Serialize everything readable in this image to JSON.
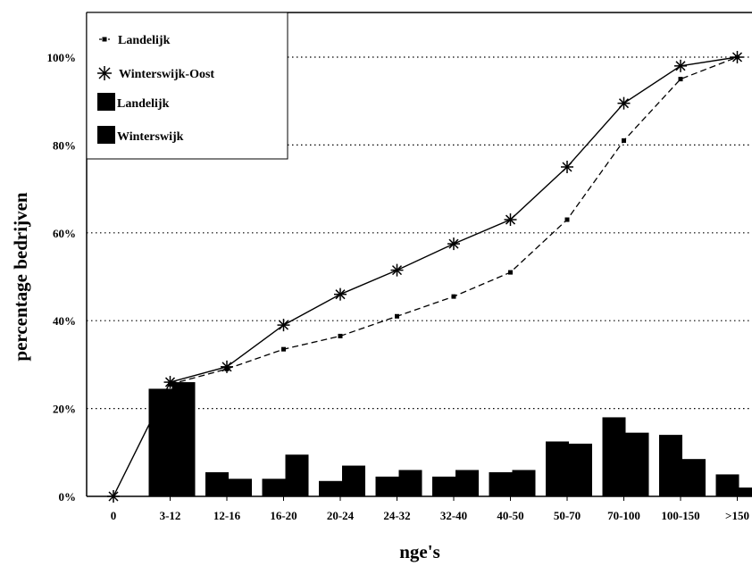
{
  "chart_data": {
    "type": "bar",
    "xlabel": "nge's",
    "ylabel": "percentage bedrijven",
    "ylim": [
      0,
      100
    ],
    "yticks": [
      "0%",
      "20%",
      "40%",
      "60%",
      "80%",
      "100%"
    ],
    "grid": "horizontal dotted",
    "legend_position": "top-left",
    "categories": [
      "0",
      "3-12",
      "12-16",
      "16-20",
      "20-24",
      "24-32",
      "32-40",
      "40-50",
      "50-70",
      "70-100",
      "100-150",
      ">150"
    ],
    "series": [
      {
        "name": "Landelijk",
        "type": "line",
        "style": "dashed",
        "marker": "square",
        "color": "#000000",
        "values": [
          null,
          25.5,
          29,
          33.5,
          36.5,
          41,
          45.5,
          51,
          63,
          81,
          95,
          100
        ]
      },
      {
        "name": "Winterswijk-Oost",
        "type": "line",
        "style": "solid",
        "marker": "asterisk",
        "color": "#000000",
        "values": [
          0,
          26,
          29.5,
          39,
          46,
          51.5,
          57.5,
          63,
          75,
          89.5,
          98,
          100
        ]
      },
      {
        "name": "Landelijk",
        "type": "bar",
        "color": "#000000",
        "values": [
          0,
          24.5,
          5.5,
          4,
          3.5,
          4.5,
          4.5,
          5.5,
          12.5,
          18,
          14,
          5
        ]
      },
      {
        "name": "Winterswijk",
        "type": "bar",
        "color": "#000000",
        "values": [
          0,
          26,
          4,
          9.5,
          7,
          6,
          6,
          6,
          12,
          14.5,
          8.5,
          2
        ]
      }
    ]
  }
}
